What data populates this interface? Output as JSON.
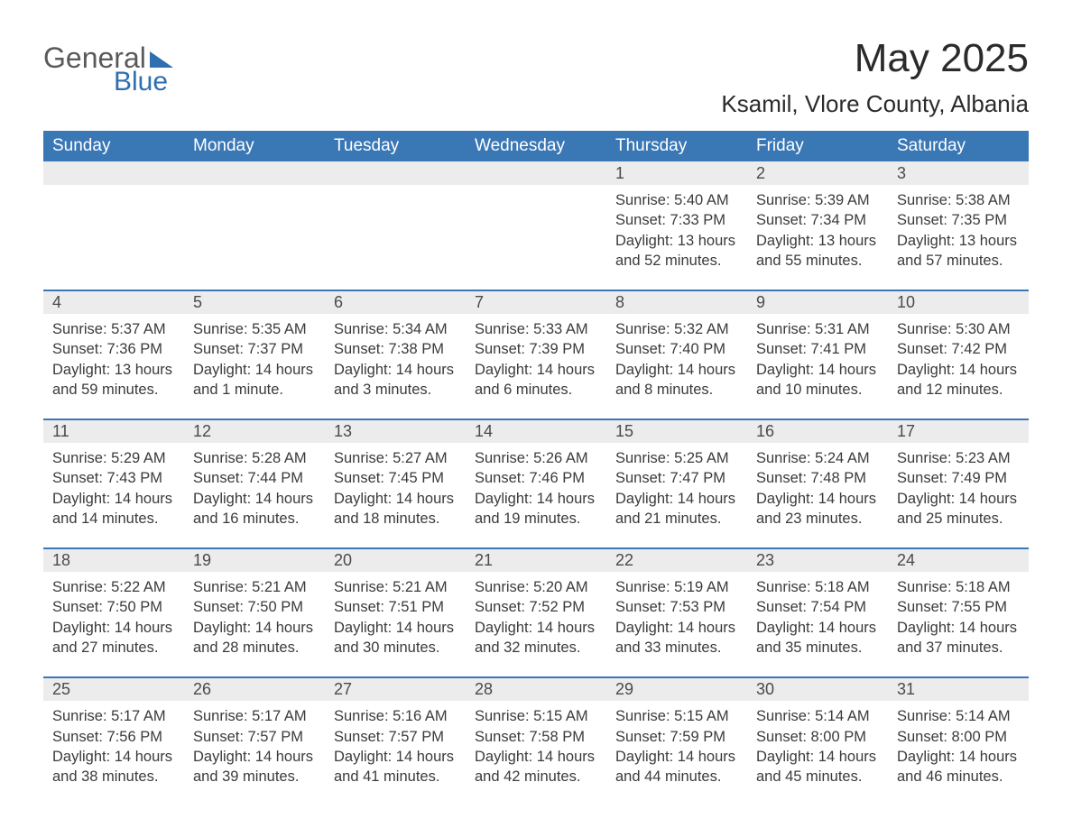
{
  "logo": {
    "line1": "General",
    "line2": "Blue"
  },
  "title": "May 2025",
  "location": "Ksamil, Vlore County, Albania",
  "colors": {
    "header_bg": "#3a77b5",
    "header_text": "#ffffff",
    "daynum_bg": "#ececec",
    "body_text": "#3b3b3b",
    "logo_gray": "#5a5a5a",
    "logo_blue": "#2f6fb0",
    "rule": "#3a77b5",
    "background": "#ffffff"
  },
  "typography": {
    "title_fontsize": 44,
    "location_fontsize": 26,
    "dow_fontsize": 19,
    "daynum_fontsize": 18,
    "detail_fontsize": 16.5,
    "font_family": "Arial"
  },
  "days_of_week": [
    "Sunday",
    "Monday",
    "Tuesday",
    "Wednesday",
    "Thursday",
    "Friday",
    "Saturday"
  ],
  "weeks": [
    [
      null,
      null,
      null,
      null,
      {
        "n": "1",
        "sr": "5:40 AM",
        "ss": "7:33 PM",
        "dl": "13 hours and 52 minutes."
      },
      {
        "n": "2",
        "sr": "5:39 AM",
        "ss": "7:34 PM",
        "dl": "13 hours and 55 minutes."
      },
      {
        "n": "3",
        "sr": "5:38 AM",
        "ss": "7:35 PM",
        "dl": "13 hours and 57 minutes."
      }
    ],
    [
      {
        "n": "4",
        "sr": "5:37 AM",
        "ss": "7:36 PM",
        "dl": "13 hours and 59 minutes."
      },
      {
        "n": "5",
        "sr": "5:35 AM",
        "ss": "7:37 PM",
        "dl": "14 hours and 1 minute."
      },
      {
        "n": "6",
        "sr": "5:34 AM",
        "ss": "7:38 PM",
        "dl": "14 hours and 3 minutes."
      },
      {
        "n": "7",
        "sr": "5:33 AM",
        "ss": "7:39 PM",
        "dl": "14 hours and 6 minutes."
      },
      {
        "n": "8",
        "sr": "5:32 AM",
        "ss": "7:40 PM",
        "dl": "14 hours and 8 minutes."
      },
      {
        "n": "9",
        "sr": "5:31 AM",
        "ss": "7:41 PM",
        "dl": "14 hours and 10 minutes."
      },
      {
        "n": "10",
        "sr": "5:30 AM",
        "ss": "7:42 PM",
        "dl": "14 hours and 12 minutes."
      }
    ],
    [
      {
        "n": "11",
        "sr": "5:29 AM",
        "ss": "7:43 PM",
        "dl": "14 hours and 14 minutes."
      },
      {
        "n": "12",
        "sr": "5:28 AM",
        "ss": "7:44 PM",
        "dl": "14 hours and 16 minutes."
      },
      {
        "n": "13",
        "sr": "5:27 AM",
        "ss": "7:45 PM",
        "dl": "14 hours and 18 minutes."
      },
      {
        "n": "14",
        "sr": "5:26 AM",
        "ss": "7:46 PM",
        "dl": "14 hours and 19 minutes."
      },
      {
        "n": "15",
        "sr": "5:25 AM",
        "ss": "7:47 PM",
        "dl": "14 hours and 21 minutes."
      },
      {
        "n": "16",
        "sr": "5:24 AM",
        "ss": "7:48 PM",
        "dl": "14 hours and 23 minutes."
      },
      {
        "n": "17",
        "sr": "5:23 AM",
        "ss": "7:49 PM",
        "dl": "14 hours and 25 minutes."
      }
    ],
    [
      {
        "n": "18",
        "sr": "5:22 AM",
        "ss": "7:50 PM",
        "dl": "14 hours and 27 minutes."
      },
      {
        "n": "19",
        "sr": "5:21 AM",
        "ss": "7:50 PM",
        "dl": "14 hours and 28 minutes."
      },
      {
        "n": "20",
        "sr": "5:21 AM",
        "ss": "7:51 PM",
        "dl": "14 hours and 30 minutes."
      },
      {
        "n": "21",
        "sr": "5:20 AM",
        "ss": "7:52 PM",
        "dl": "14 hours and 32 minutes."
      },
      {
        "n": "22",
        "sr": "5:19 AM",
        "ss": "7:53 PM",
        "dl": "14 hours and 33 minutes."
      },
      {
        "n": "23",
        "sr": "5:18 AM",
        "ss": "7:54 PM",
        "dl": "14 hours and 35 minutes."
      },
      {
        "n": "24",
        "sr": "5:18 AM",
        "ss": "7:55 PM",
        "dl": "14 hours and 37 minutes."
      }
    ],
    [
      {
        "n": "25",
        "sr": "5:17 AM",
        "ss": "7:56 PM",
        "dl": "14 hours and 38 minutes."
      },
      {
        "n": "26",
        "sr": "5:17 AM",
        "ss": "7:57 PM",
        "dl": "14 hours and 39 minutes."
      },
      {
        "n": "27",
        "sr": "5:16 AM",
        "ss": "7:57 PM",
        "dl": "14 hours and 41 minutes."
      },
      {
        "n": "28",
        "sr": "5:15 AM",
        "ss": "7:58 PM",
        "dl": "14 hours and 42 minutes."
      },
      {
        "n": "29",
        "sr": "5:15 AM",
        "ss": "7:59 PM",
        "dl": "14 hours and 44 minutes."
      },
      {
        "n": "30",
        "sr": "5:14 AM",
        "ss": "8:00 PM",
        "dl": "14 hours and 45 minutes."
      },
      {
        "n": "31",
        "sr": "5:14 AM",
        "ss": "8:00 PM",
        "dl": "14 hours and 46 minutes."
      }
    ]
  ],
  "labels": {
    "sunrise": "Sunrise: ",
    "sunset": "Sunset: ",
    "daylight": "Daylight: "
  }
}
